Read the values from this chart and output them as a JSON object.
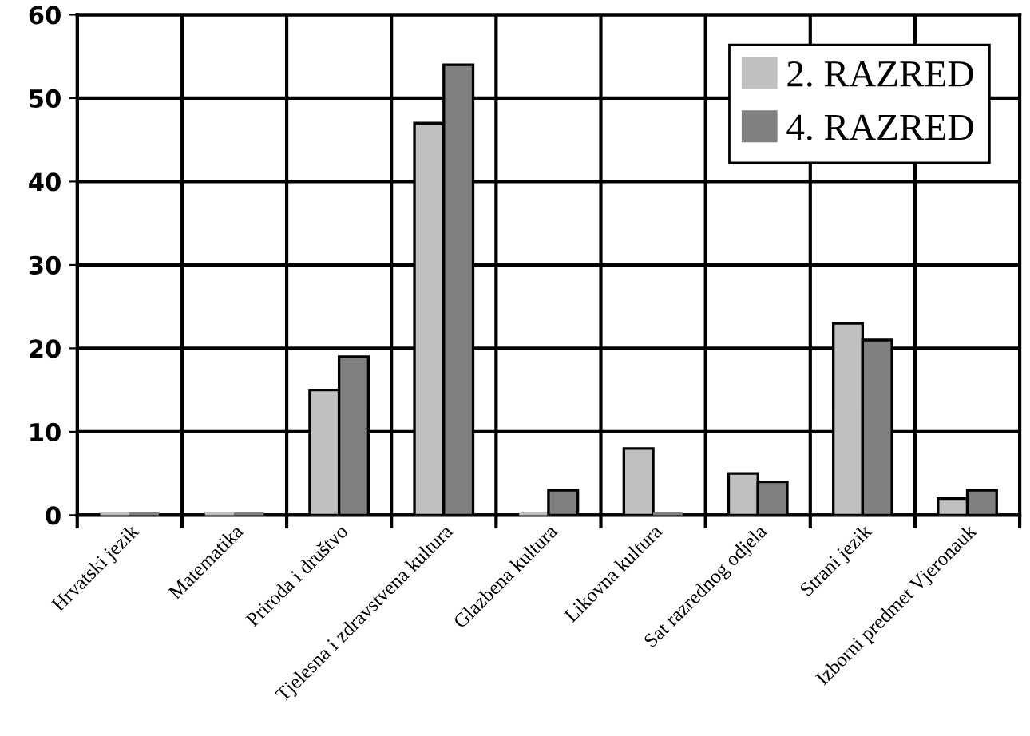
{
  "chart_data": {
    "type": "bar",
    "categories": [
      "Hrvatski jezik",
      "Matematika",
      "Priroda i društvo",
      "Tjelesna i zdravstvena kultura",
      "Glazbena kultura",
      "Likovna kultura",
      "Sat razrednog odjela",
      "Strani jezik",
      "Izborni predmet Vjeronauk"
    ],
    "series": [
      {
        "name": "2. RAZRED",
        "color": "#c0c0c0",
        "values": [
          0,
          0,
          15,
          47,
          0,
          8,
          5,
          23,
          2
        ]
      },
      {
        "name": "4. RAZRED",
        "color": "#808080",
        "values": [
          0,
          0,
          19,
          54,
          3,
          0,
          4,
          21,
          3
        ]
      }
    ],
    "ylim": [
      0,
      60
    ],
    "yticks": [
      0,
      10,
      20,
      30,
      40,
      50,
      60
    ],
    "grid": true,
    "legend": "top right"
  }
}
